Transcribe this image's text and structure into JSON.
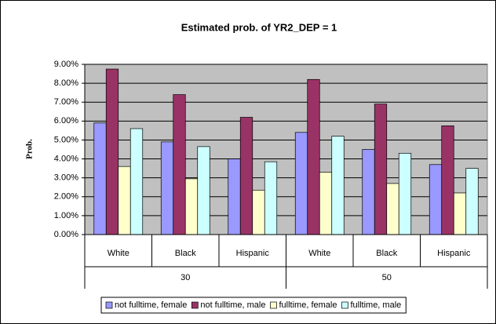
{
  "chart_data": {
    "type": "bar",
    "title": "Estimated prob. of YR2_DEP = 1",
    "y_label": "Prob.",
    "categories": [
      "White",
      "Black",
      "Hispanic",
      "White",
      "Black",
      "Hispanic"
    ],
    "category_groups": [
      "30",
      "50"
    ],
    "series": [
      {
        "name": "not fulltime, female",
        "color": "#9999ff",
        "values": [
          5.9,
          4.9,
          4.0,
          5.4,
          4.5,
          3.7
        ]
      },
      {
        "name": "not fulltime, male",
        "color": "#993366",
        "values": [
          8.75,
          7.4,
          6.2,
          8.2,
          6.9,
          5.75
        ]
      },
      {
        "name": "fulltime, female",
        "color": "#ffffcc",
        "values": [
          3.6,
          2.95,
          2.35,
          3.3,
          2.7,
          2.2
        ]
      },
      {
        "name": "fulltime, male",
        "color": "#ccffff",
        "values": [
          5.6,
          4.65,
          3.85,
          5.2,
          4.3,
          3.5
        ]
      }
    ],
    "ylim": [
      0,
      9
    ],
    "yticks": [
      {
        "value": 0,
        "label": "0.00%"
      },
      {
        "value": 1,
        "label": "1.00%"
      },
      {
        "value": 2,
        "label": "2.00%"
      },
      {
        "value": 3,
        "label": "3.00%"
      },
      {
        "value": 4,
        "label": "4.00%"
      },
      {
        "value": 5,
        "label": "5.00%"
      },
      {
        "value": 6,
        "label": "6.00%"
      },
      {
        "value": 7,
        "label": "7.00%"
      },
      {
        "value": 8,
        "label": "8.00%"
      },
      {
        "value": 9,
        "label": "9.00%"
      }
    ],
    "grid": true,
    "plot_background": "#c0c0c0",
    "legend": "bottom"
  }
}
